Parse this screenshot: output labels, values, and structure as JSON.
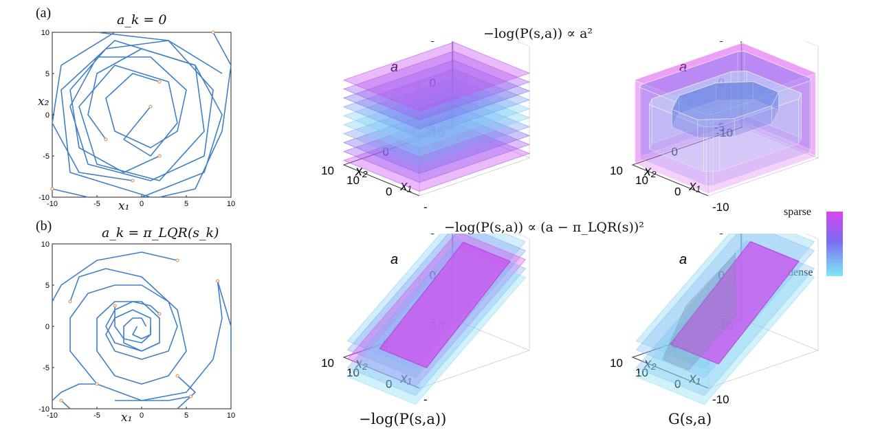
{
  "panels": {
    "a": {
      "label": "(a)",
      "title": "a_k = 0"
    },
    "b": {
      "label": "(b)",
      "title": "a_k = π_LQR(s_k)"
    }
  },
  "row_titles": {
    "top": "−log(P(s,a)) ∝ a²",
    "bottom": "−log(P(s,a)) ∝ (a − π_LQR(s))²"
  },
  "column_labels": {
    "left": "−log(P(s,a))",
    "right": "G(s,a)"
  },
  "colorbar": {
    "top": "sparse",
    "bottom": "dense",
    "colors": [
      "#d946ef",
      "#7b6cf0",
      "#7fe8f5"
    ]
  },
  "chart_data": [
    {
      "type": "line",
      "panel": "a",
      "title": "a_k = 0",
      "xlabel": "x₁",
      "ylabel": "x₂",
      "xlim": [
        -10,
        10
      ],
      "ylim": [
        -10,
        10
      ],
      "xticks": [
        "-10",
        "-5",
        "0",
        "5",
        "10"
      ],
      "yticks": [
        "10",
        "5",
        "0",
        "-5",
        "-10"
      ],
      "series": [
        {
          "points": [
            [
              1,
              1
            ],
            [
              -2,
              -3
            ],
            [
              1,
              -5
            ],
            [
              4,
              -1
            ],
            [
              3,
              4
            ],
            [
              -3,
              6
            ],
            [
              -7,
              1
            ],
            [
              -5,
              -6
            ],
            [
              2,
              -8
            ],
            [
              7,
              -2
            ],
            [
              6,
              6
            ],
            [
              -3,
              9
            ],
            [
              -9,
              3
            ],
            [
              -8,
              -7
            ],
            [
              1,
              -10
            ]
          ]
        },
        {
          "points": [
            [
              2,
              4
            ],
            [
              -1,
              5
            ],
            [
              -4,
              2
            ],
            [
              -3,
              -2
            ],
            [
              1,
              -4
            ],
            [
              4,
              -2
            ],
            [
              5,
              3
            ],
            [
              1,
              7
            ],
            [
              -5,
              7
            ],
            [
              -8,
              1
            ],
            [
              -6,
              -6
            ],
            [
              1,
              -8
            ],
            [
              7,
              -5
            ],
            [
              8,
              3
            ],
            [
              3,
              9
            ],
            [
              -5,
              10
            ]
          ]
        },
        {
          "points": [
            [
              -4,
              -3
            ],
            [
              -6,
              0
            ],
            [
              -5,
              5
            ],
            [
              0,
              8
            ],
            [
              6,
              6
            ],
            [
              9,
              0
            ],
            [
              7,
              -7
            ],
            [
              0,
              -10
            ]
          ]
        },
        {
          "points": [
            [
              2,
              -5
            ],
            [
              -2,
              -7
            ],
            [
              -7,
              -4
            ],
            [
              -8,
              3
            ],
            [
              -4,
              8
            ],
            [
              3,
              9
            ],
            [
              9,
              5
            ]
          ]
        },
        {
          "points": [
            [
              -1,
              -8
            ],
            [
              -7,
              -7
            ],
            [
              -10,
              -1
            ],
            [
              -9,
              6
            ],
            [
              -3,
              10
            ]
          ]
        },
        {
          "points": [
            [
              8,
              10
            ],
            [
              10,
              6
            ],
            [
              9,
              -2
            ],
            [
              6,
              -9
            ],
            [
              2,
              -10
            ]
          ]
        },
        {
          "points": [
            [
              -10,
              -9
            ],
            [
              -6,
              -10
            ]
          ]
        }
      ],
      "markers": [
        [
          1,
          1
        ],
        [
          2,
          4
        ],
        [
          -4,
          -3
        ],
        [
          2,
          -5
        ],
        [
          -1,
          -8
        ],
        [
          8,
          10
        ],
        [
          -10,
          -9
        ]
      ]
    },
    {
      "type": "line",
      "panel": "b",
      "title": "a_k = π_LQR(s_k)",
      "xlabel": "x₁",
      "ylabel": "",
      "xlim": [
        -10,
        10
      ],
      "ylim": [
        -10,
        10
      ],
      "xticks": [
        "-10",
        "-5",
        "0",
        "5",
        "10"
      ],
      "yticks": [
        "10",
        "5",
        "0",
        "-5",
        "-10"
      ],
      "series": [
        {
          "points": [
            [
              4,
              8
            ],
            [
              0,
              9
            ],
            [
              -5,
              8
            ],
            [
              -9,
              5
            ],
            [
              -10,
              3
            ]
          ]
        },
        {
          "points": [
            [
              -8,
              3
            ],
            [
              -7,
              6
            ],
            [
              -4,
              7
            ],
            [
              0,
              6
            ],
            [
              4,
              2
            ],
            [
              5,
              -3
            ],
            [
              3,
              -6
            ],
            [
              0,
              -7
            ],
            [
              -3,
              -6
            ],
            [
              -5,
              -3
            ],
            [
              -5,
              1
            ],
            [
              -3,
              3
            ],
            [
              0,
              3
            ],
            [
              2,
              1
            ],
            [
              2,
              -2
            ],
            [
              0,
              -3
            ],
            [
              -2,
              -2
            ],
            [
              -2,
              0
            ],
            [
              -1,
              1
            ],
            [
              0,
              1
            ],
            [
              0.5,
              0
            ]
          ]
        },
        {
          "points": [
            [
              8.5,
              5.5
            ],
            [
              9,
              1
            ],
            [
              8,
              -4
            ],
            [
              5,
              -8
            ],
            [
              0,
              -9
            ],
            [
              -5,
              -7
            ],
            [
              -8,
              -3
            ],
            [
              -8,
              1
            ],
            [
              -6,
              4
            ],
            [
              -3,
              5
            ],
            [
              0,
              5
            ],
            [
              3,
              3
            ],
            [
              4,
              0
            ],
            [
              3,
              -3
            ],
            [
              0,
              -4
            ],
            [
              -3,
              -3
            ],
            [
              -4,
              -1
            ],
            [
              -3,
              1
            ],
            [
              -1,
              2
            ],
            [
              1,
              1
            ],
            [
              1,
              -1
            ],
            [
              0,
              -1.5
            ],
            [
              -1,
              -1
            ],
            [
              -0.5,
              0
            ]
          ]
        },
        {
          "points": [
            [
              -5,
              -7
            ],
            [
              -7,
              -7
            ],
            [
              -9,
              -8
            ],
            [
              -10,
              -9
            ]
          ]
        },
        {
          "points": [
            [
              -3,
              2.5
            ],
            [
              -3,
              0
            ],
            [
              -2,
              -1.5
            ],
            [
              0,
              -2
            ],
            [
              1,
              -1
            ],
            [
              1,
              0
            ]
          ]
        },
        {
          "points": [
            [
              2,
              1.5
            ],
            [
              1,
              2.5
            ],
            [
              -1,
              3
            ],
            [
              -3,
              2
            ],
            [
              -4,
              0
            ],
            [
              -3,
              -2
            ],
            [
              0,
              -3
            ],
            [
              2,
              -2
            ]
          ]
        },
        {
          "points": [
            [
              4,
              -6
            ],
            [
              6,
              -8
            ],
            [
              4,
              -10
            ]
          ]
        },
        {
          "points": [
            [
              5.5,
              -8.5
            ],
            [
              3,
              -9
            ],
            [
              -3,
              -9
            ]
          ]
        },
        {
          "points": [
            [
              -9,
              -9
            ],
            [
              -8,
              -10
            ]
          ]
        },
        {
          "points": [
            [
              8.5,
              5.5
            ],
            [
              10,
              0
            ],
            [
              10,
              -3
            ]
          ]
        }
      ],
      "markers": [
        [
          4,
          8
        ],
        [
          -8,
          3
        ],
        [
          8.5,
          5.5
        ],
        [
          -5,
          -7
        ],
        [
          -3,
          2.5
        ],
        [
          2,
          1.5
        ],
        [
          4,
          -6
        ],
        [
          5.5,
          -8.5
        ],
        [
          -9,
          -9
        ]
      ]
    },
    {
      "type": "surface",
      "panel": "a-left",
      "title": "−log(P(s,a)) ∝ a²",
      "zlabel": "a",
      "xlabel": "x₁",
      "ylabel": "x₂",
      "zlim": [
        -5,
        5
      ],
      "zticks": [
        "5",
        "0",
        "-5"
      ],
      "x2ticks": [
        "-10",
        "0",
        "10"
      ],
      "x1ticks": [
        "0",
        "-"
      ],
      "levels": [
        4.5,
        3.5,
        2.5,
        1.5,
        0.5,
        -0.5,
        -1.5,
        -2.5,
        -3.5,
        -4.5
      ]
    },
    {
      "type": "surface",
      "panel": "a-right",
      "zlabel": "a",
      "xlabel": "x₁",
      "ylabel": "x₂",
      "zlim": [
        -5,
        5
      ],
      "zticks": [
        "5",
        "0",
        "-5"
      ],
      "x2ticks": [
        "-10",
        "0",
        "10"
      ],
      "x1ticks": [
        "0",
        "-10"
      ]
    },
    {
      "type": "surface",
      "panel": "b-left",
      "title": "−log(P(s,a)) ∝ (a − π_LQR(s))²",
      "zlabel": "a",
      "xlabel": "x₁",
      "ylabel": "x₂",
      "zlim": [
        -5,
        5
      ],
      "zticks": [
        "5",
        "0",
        "-5"
      ],
      "x2ticks": [
        "-10",
        "0",
        "10"
      ],
      "x1ticks": [
        "0",
        "-"
      ]
    },
    {
      "type": "surface",
      "panel": "b-right",
      "zlabel": "a",
      "xlabel": "x₁",
      "ylabel": "x₂",
      "zlim": [
        -5,
        5
      ],
      "zticks": [
        "5",
        "0",
        "-5"
      ],
      "x2ticks": [
        "-10",
        "0",
        "10"
      ],
      "x1ticks": [
        "0",
        "-10"
      ]
    }
  ]
}
